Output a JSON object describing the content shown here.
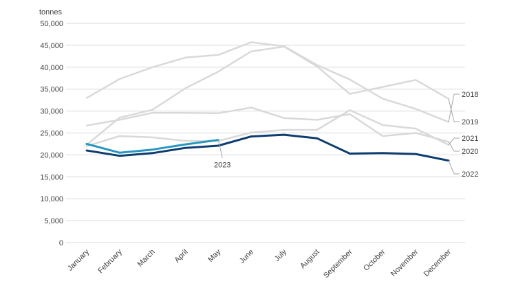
{
  "chart_data": {
    "type": "line",
    "title": "",
    "xlabel": "",
    "ylabel": "tonnes",
    "ylim": [
      0,
      50000
    ],
    "yticks": [
      0,
      5000,
      10000,
      15000,
      20000,
      25000,
      30000,
      35000,
      40000,
      45000,
      50000
    ],
    "ytick_labels": [
      "0",
      "5,000",
      "10,000",
      "15,000",
      "20,000",
      "25,000",
      "30,000",
      "35,000",
      "40,000",
      "45,000",
      "50,000"
    ],
    "categories": [
      "January",
      "February",
      "March",
      "April",
      "May",
      "June",
      "July",
      "August",
      "September",
      "October",
      "November",
      "December"
    ],
    "grid": true,
    "legend": "none",
    "series": [
      {
        "name": "2018",
        "color": "#d9d9d9",
        "values": [
          33000,
          37300,
          40000,
          42200,
          42800,
          45700,
          44800,
          40500,
          37200,
          32800,
          30500,
          27500
        ]
      },
      {
        "name": "2019",
        "color": "#d9d9d9",
        "values": [
          22300,
          28500,
          30300,
          35200,
          39000,
          43600,
          44700,
          40200,
          33900,
          35500,
          37100,
          32800
        ]
      },
      {
        "name": "2020",
        "color": "#d9d9d9",
        "values": [
          26700,
          28000,
          29600,
          29600,
          29500,
          30800,
          28400,
          28000,
          29300,
          24300,
          25000,
          23000
        ]
      },
      {
        "name": "2021",
        "color": "#d9d9d9",
        "values": [
          22000,
          24300,
          24000,
          23200,
          23200,
          25100,
          25700,
          25700,
          30200,
          26800,
          26000,
          22300
        ]
      },
      {
        "name": "2022",
        "color": "#0d3c6e",
        "values": [
          21000,
          19800,
          20400,
          21600,
          22100,
          24200,
          24600,
          23800,
          20300,
          20400,
          20200,
          18700
        ]
      },
      {
        "name": "2023",
        "color": "#2796c0",
        "values": [
          22500,
          20500,
          21200,
          22400,
          23400,
          null,
          null,
          null,
          null,
          null,
          null,
          null
        ]
      }
    ]
  }
}
